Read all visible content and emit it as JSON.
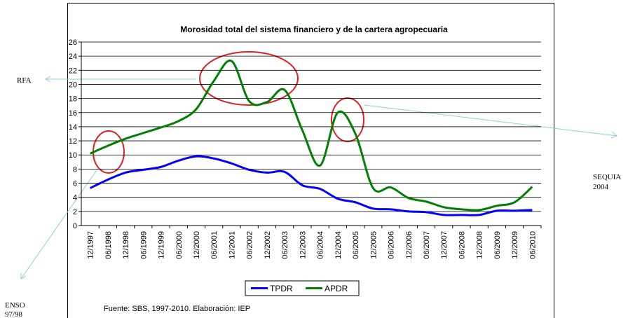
{
  "chart_data": {
    "type": "line",
    "title": "Morosidad total del sistema financiero y de la cartera agropecuaria",
    "categories": [
      "12/1997",
      "06/1998",
      "12/1998",
      "06/1999",
      "12/1999",
      "06/2000",
      "12/2000",
      "06/2001",
      "12/2001",
      "06/2002",
      "12/2002",
      "06/2003",
      "12/2003",
      "06/2004",
      "12/2004",
      "06/2005",
      "12/2005",
      "06/2006",
      "12/2006",
      "06/2007",
      "12/2007",
      "06/2008",
      "12/2008",
      "06/2009",
      "12/2009",
      "06/2010"
    ],
    "series": [
      {
        "name": "TPDR",
        "color": "#0000ff",
        "values": [
          5.3,
          6.5,
          7.5,
          7.9,
          8.3,
          9.2,
          9.8,
          9.5,
          8.8,
          7.9,
          7.5,
          7.6,
          5.7,
          5.2,
          3.8,
          3.3,
          2.4,
          2.3,
          2.0,
          1.9,
          1.5,
          1.5,
          1.5,
          2.1,
          2.1,
          2.2
        ]
      },
      {
        "name": "APDR",
        "color": "#008000",
        "values": [
          10.2,
          11.3,
          12.3,
          13.1,
          13.9,
          14.8,
          16.5,
          20.5,
          23.3,
          17.6,
          17.5,
          19.2,
          13.5,
          8.5,
          16.0,
          13.0,
          5.3,
          5.4,
          3.9,
          3.4,
          2.6,
          2.3,
          2.2,
          2.8,
          3.3,
          5.5
        ]
      }
    ],
    "ylim": [
      0,
      26
    ],
    "yticks": [
      0,
      2,
      4,
      6,
      8,
      10,
      12,
      14,
      16,
      18,
      20,
      22,
      24,
      26
    ],
    "grid": true,
    "legend": "bottom",
    "source": "Fuente: SBS, 1997-2010. Elaboración: IEP",
    "annotations": {
      "rfa": [
        "RFA"
      ],
      "sequia": [
        "SEQUIA",
        "2004"
      ],
      "enso": [
        "ENSO",
        "97/98"
      ]
    }
  }
}
